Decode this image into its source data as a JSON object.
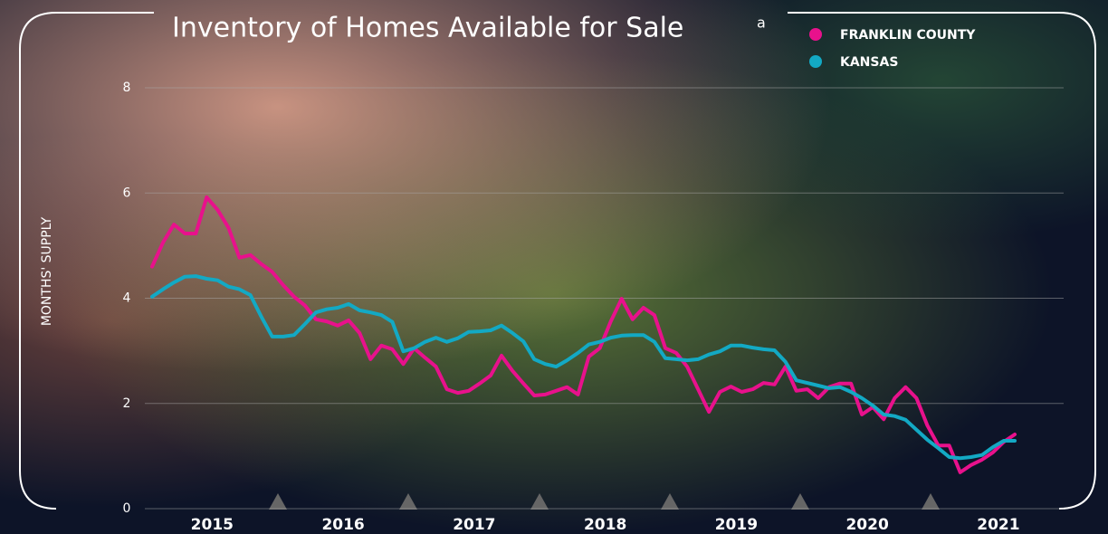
{
  "chart_data": {
    "type": "line",
    "title": "Inventory of Homes Available for Sale",
    "title_note": "a",
    "y_label": "MONTHS' SUPPLY",
    "categories": [
      null,
      null,
      null,
      null,
      null,
      "2015",
      null,
      null,
      null,
      null,
      null,
      null,
      null,
      null,
      null,
      null,
      null,
      "2016",
      null,
      null,
      null,
      null,
      null,
      null,
      null,
      null,
      null,
      null,
      null,
      "2017",
      null,
      null,
      null,
      null,
      null,
      null,
      null,
      null,
      null,
      null,
      null,
      "2018",
      null,
      null,
      null,
      null,
      null,
      null,
      null,
      null,
      null,
      null,
      null,
      "2019",
      null,
      null,
      null,
      null,
      null,
      null,
      null,
      null,
      null,
      null,
      null,
      "2020",
      null,
      null,
      null,
      null,
      null,
      null,
      null,
      null,
      null,
      null,
      null,
      "2021",
      null,
      null
    ],
    "series": [
      {
        "name": "FRANKLIN COUNTY",
        "color": "#e8118c",
        "values": [
          4.6,
          5.06,
          5.4,
          5.23,
          5.23,
          5.92,
          5.68,
          5.34,
          4.77,
          4.82,
          4.65,
          4.5,
          4.25,
          4.03,
          3.86,
          3.6,
          3.56,
          3.48,
          3.58,
          3.34,
          2.84,
          3.1,
          3.03,
          2.75,
          3.05,
          2.87,
          2.7,
          2.27,
          2.2,
          2.24,
          2.38,
          2.53,
          2.91,
          2.62,
          2.38,
          2.15,
          2.17,
          2.24,
          2.31,
          2.17,
          2.89,
          3.05,
          3.56,
          3.99,
          3.6,
          3.82,
          3.68,
          3.05,
          2.96,
          2.7,
          2.27,
          1.84,
          2.22,
          2.32,
          2.22,
          2.27,
          2.39,
          2.36,
          2.7,
          2.24,
          2.27,
          2.1,
          2.31,
          2.38,
          2.38,
          1.79,
          1.93,
          1.7,
          2.1,
          2.31,
          2.1,
          1.58,
          1.2,
          1.2,
          0.69,
          0.83,
          0.93,
          1.07,
          1.27,
          1.41
        ]
      },
      {
        "name": "KANSAS",
        "color": "#13a9c4",
        "values": [
          4.03,
          4.17,
          4.3,
          4.41,
          4.42,
          4.37,
          4.34,
          4.22,
          4.17,
          4.06,
          3.65,
          3.27,
          3.27,
          3.3,
          3.51,
          3.73,
          3.79,
          3.82,
          3.89,
          3.77,
          3.73,
          3.68,
          3.55,
          2.99,
          3.05,
          3.17,
          3.25,
          3.17,
          3.24,
          3.36,
          3.37,
          3.39,
          3.48,
          3.34,
          3.18,
          2.84,
          2.75,
          2.7,
          2.82,
          2.96,
          3.12,
          3.17,
          3.25,
          3.29,
          3.3,
          3.3,
          3.17,
          2.86,
          2.84,
          2.82,
          2.84,
          2.93,
          2.99,
          3.1,
          3.1,
          3.06,
          3.03,
          3.01,
          2.79,
          2.44,
          2.39,
          2.34,
          2.29,
          2.31,
          2.22,
          2.1,
          1.96,
          1.79,
          1.76,
          1.69,
          1.5,
          1.31,
          1.15,
          0.98,
          0.96,
          0.98,
          1.02,
          1.17,
          1.29,
          1.29
        ]
      }
    ],
    "ylim": [
      0,
      8
    ],
    "yticks": [
      0,
      2,
      4,
      6,
      8
    ],
    "grid": true
  }
}
